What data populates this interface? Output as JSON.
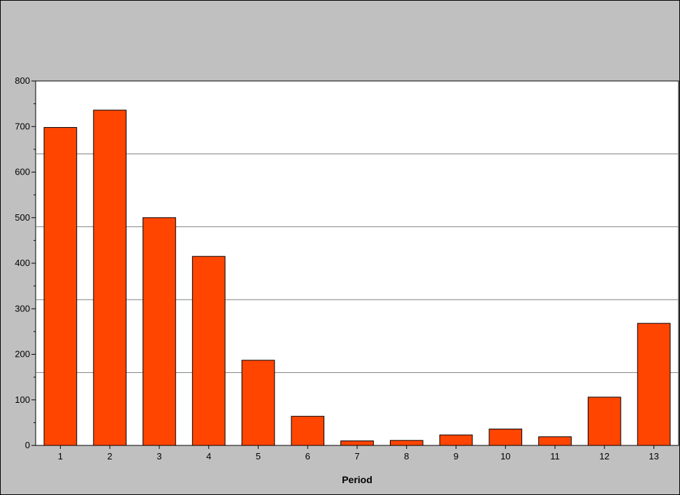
{
  "chart_data": {
    "type": "bar",
    "title": "",
    "xlabel": "Period",
    "ylabel": "",
    "categories": [
      "1",
      "2",
      "3",
      "4",
      "5",
      "6",
      "7",
      "8",
      "9",
      "10",
      "11",
      "12",
      "13"
    ],
    "values": [
      698,
      736,
      500,
      415,
      187,
      64,
      10,
      11,
      23,
      36,
      19,
      106,
      268
    ],
    "ylim": [
      0,
      800
    ],
    "yticks": [
      0,
      100,
      200,
      300,
      400,
      500,
      600,
      700,
      800
    ],
    "ytick_labels": [
      "0",
      "100",
      "200",
      "300",
      "400",
      "500",
      "600",
      "700",
      "800"
    ],
    "grid": true,
    "legend": "none",
    "colors": {
      "bar_fill": "#ff4500",
      "bar_stroke": "#000000",
      "plot_background": "#ffffff",
      "page_background": "#c0c0c0",
      "grid": "#808080"
    }
  }
}
